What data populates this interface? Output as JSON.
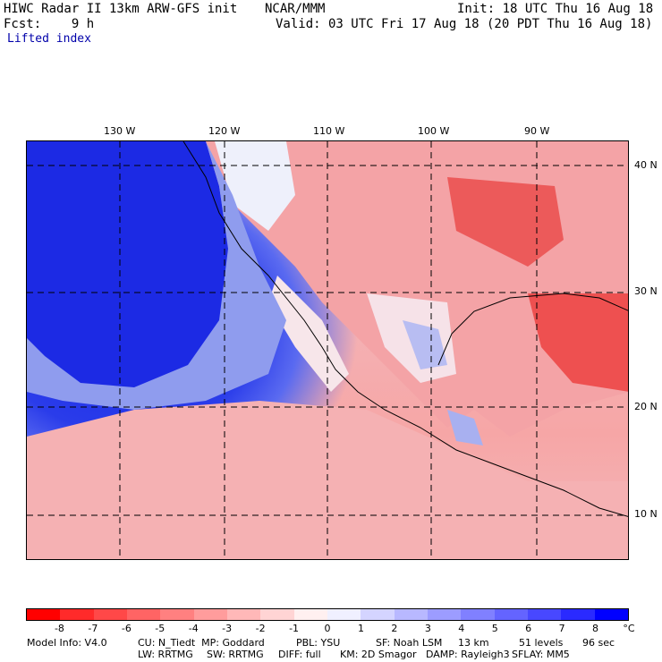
{
  "header": {
    "model": "HIWC Radar II 13km ARW-GFS init",
    "org": "NCAR/MMM",
    "init": "Init: 18 UTC Thu 16 Aug 18",
    "fcst": "Fcst:    9 h",
    "valid": "Valid: 03 UTC Fri 17 Aug 18 (20 PDT Thu 16 Aug 18)",
    "field": "Lifted index"
  },
  "map": {
    "lon_labels": [
      "130 W",
      "120 W",
      "110 W",
      "100 W",
      "90 W"
    ],
    "lat_labels": [
      "40 N",
      "30 N",
      "20 N",
      "10 N"
    ]
  },
  "colorbar": {
    "colors": [
      "#ff0000",
      "#ff2a2a",
      "#ff4848",
      "#ff6464",
      "#ff8080",
      "#ff9c9c",
      "#ffb8b8",
      "#ffd4d4",
      "#fff0f0",
      "#f0f0ff",
      "#d4d4ff",
      "#b8b8ff",
      "#9c9cff",
      "#8080ff",
      "#6464ff",
      "#4848ff",
      "#2a2aff",
      "#0000ff"
    ],
    "labels": [
      "-8",
      "-7",
      "-6",
      "-5",
      "-4",
      "-3",
      "-2",
      "-1",
      "0",
      "1",
      "2",
      "3",
      "4",
      "5",
      "6",
      "7",
      "8"
    ],
    "unit": "°C"
  },
  "footer": {
    "line1": [
      "Model Info: V4.0",
      "CU: N_Tiedt  MP: Goddard",
      "PBL: YSU",
      "SF: Noah LSM",
      "13 km",
      "51 levels",
      "96 sec"
    ],
    "line2": [
      "LW: RRTMG",
      "SW: RRTMG",
      "DIFF: full",
      "KM: 2D Smagor",
      "DAMP: Rayleigh3",
      "SFLAY: MM5"
    ]
  }
}
